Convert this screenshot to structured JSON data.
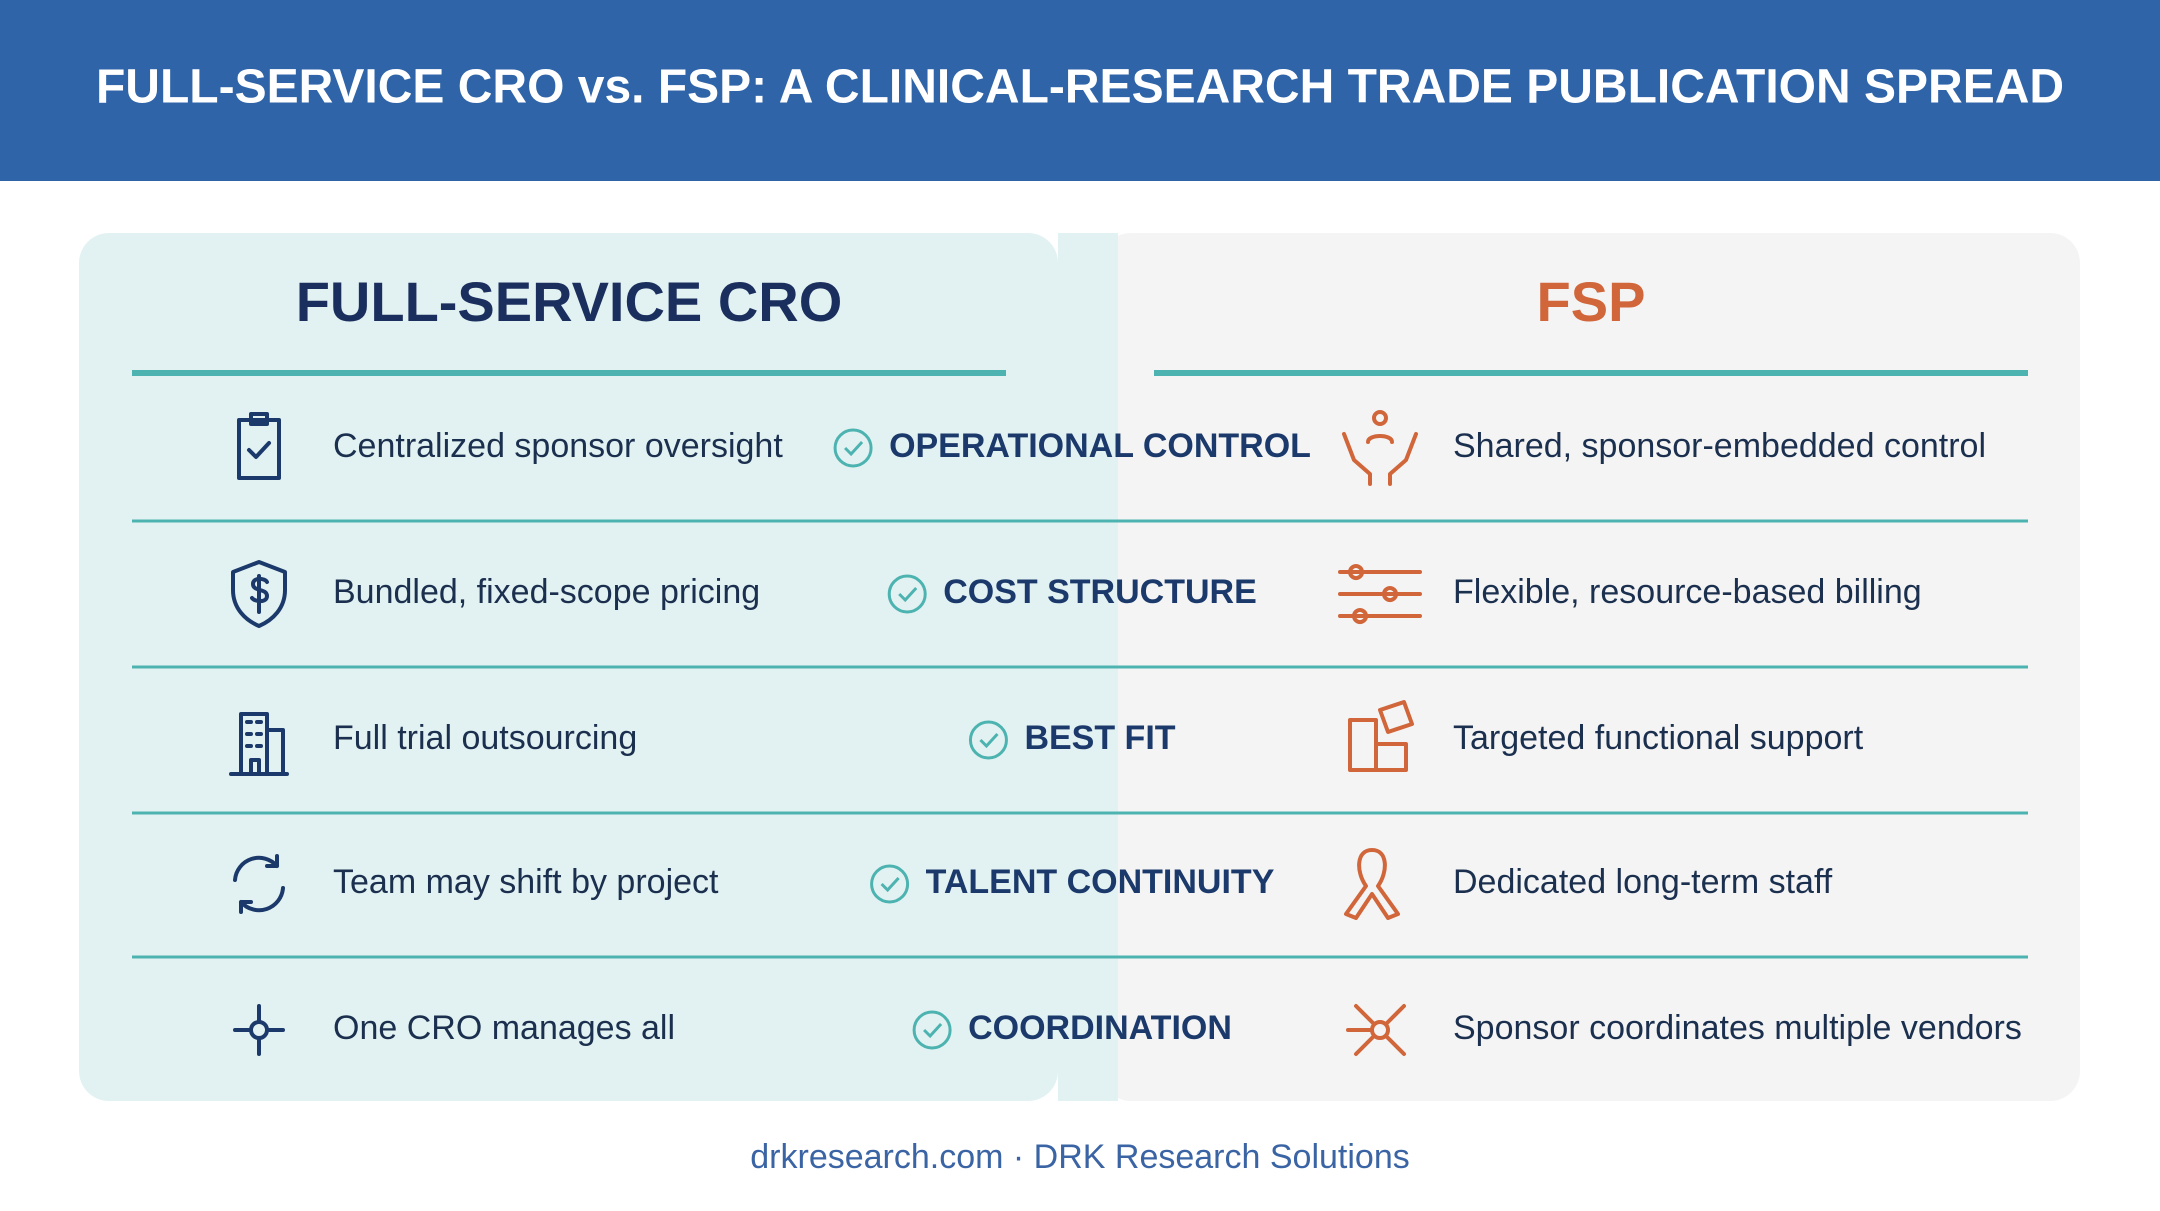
{
  "header": {
    "title": "FULL-SERVICE CRO vs. FSP: A CLINICAL-RESEARCH TRADE PUBLICATION SPREAD"
  },
  "columns": {
    "left": {
      "title": "FULL-SERVICE CRO"
    },
    "right": {
      "title": "FSP"
    }
  },
  "rows": [
    {
      "left": "Centralized sponsor oversight",
      "criterion": "OPERATIONAL CONTROL",
      "right": "Shared, sponsor-embedded control"
    },
    {
      "left": "Bundled, fixed-scope pricing",
      "criterion": "COST STRUCTURE",
      "right": "Flexible, resource-based billing"
    },
    {
      "left": "Full trial outsourcing",
      "criterion": "BEST FIT",
      "right": "Targeted functional support"
    },
    {
      "left": "Team may shift by project",
      "criterion": "TALENT CONTINUITY",
      "right": "Dedicated long-term staff"
    },
    {
      "left": "One CRO manages all",
      "criterion": "COORDINATION",
      "right": "Sponsor coordinates multiple vendors"
    }
  ],
  "footer": "drkresearch.com · DRK Research Solutions"
}
